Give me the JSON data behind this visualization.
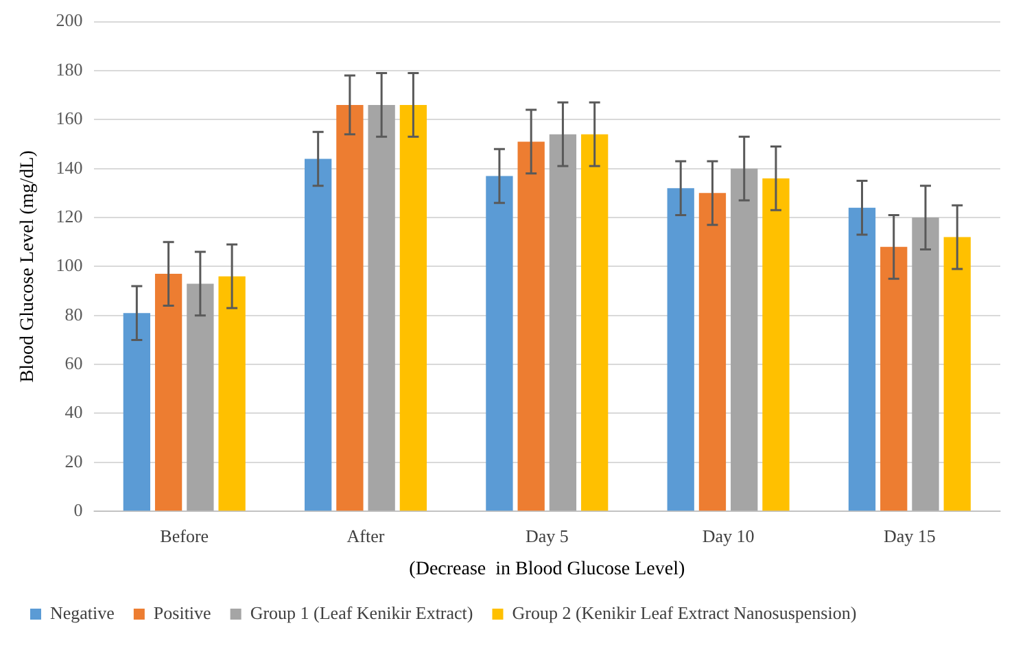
{
  "chart_data": {
    "type": "bar",
    "ylabel": "Blood Glucose Level (mg/dL)",
    "xlabel": "(Decrease  in Blood Glucose Level)",
    "categories": [
      "Before",
      "After",
      "Day 5",
      "Day 10",
      "Day 15"
    ],
    "series": [
      {
        "name": "Negative",
        "color": "#5b9bd5",
        "values": [
          81,
          144,
          137,
          132,
          124
        ],
        "errors": [
          11,
          11,
          11,
          11,
          11
        ]
      },
      {
        "name": "Positive",
        "color": "#ed7d31",
        "values": [
          97,
          166,
          151,
          130,
          108
        ],
        "errors": [
          13,
          12,
          13,
          13,
          13
        ]
      },
      {
        "name": "Group 1 (Leaf Kenikir Extract)",
        "color": "#a5a5a5",
        "values": [
          93,
          166,
          154,
          140,
          120
        ],
        "errors": [
          13,
          13,
          13,
          13,
          13
        ]
      },
      {
        "name": "Group 2 (Kenikir Leaf Extract Nanosuspension)",
        "color": "#ffc000",
        "values": [
          96,
          166,
          154,
          136,
          112
        ],
        "errors": [
          13,
          13,
          13,
          13,
          13
        ]
      }
    ],
    "ylim": [
      0,
      200
    ],
    "yticks": [
      0,
      20,
      40,
      60,
      80,
      100,
      120,
      140,
      160,
      180,
      200
    ],
    "grid": "y",
    "legend": "bottom"
  }
}
